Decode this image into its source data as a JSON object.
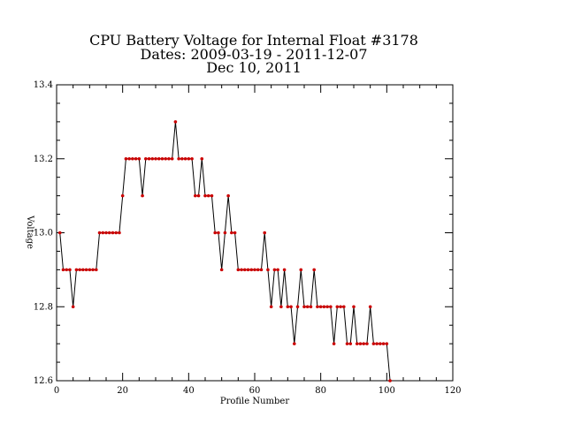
{
  "chart_data": {
    "type": "line",
    "title_lines": [
      "CPU Battery Voltage for Internal Float #3178",
      "Dates:  2009-03-19 -  2011-12-07",
      "Dec 10, 2011"
    ],
    "xlabel": "Profile Number",
    "ylabel": "Voltage",
    "xlim": [
      0,
      120
    ],
    "ylim": [
      12.6,
      13.4
    ],
    "xticks": [
      0,
      20,
      40,
      60,
      80,
      100,
      120
    ],
    "yticks": [
      12.6,
      12.8,
      13.0,
      13.2,
      13.4
    ],
    "ytick_labels": [
      "12.6",
      "12.8",
      "13.0",
      "13.2",
      "13.4"
    ],
    "series": [
      {
        "line_color": "#000000",
        "marker_color": "#cc0000",
        "x": [
          1,
          2,
          3,
          4,
          5,
          6,
          7,
          8,
          9,
          10,
          11,
          12,
          13,
          14,
          15,
          16,
          17,
          18,
          19,
          20,
          21,
          22,
          23,
          24,
          25,
          26,
          27,
          28,
          29,
          30,
          31,
          32,
          33,
          34,
          35,
          36,
          37,
          38,
          39,
          40,
          41,
          42,
          43,
          44,
          45,
          46,
          47,
          48,
          49,
          50,
          51,
          52,
          53,
          54,
          55,
          56,
          57,
          58,
          59,
          60,
          61,
          62,
          63,
          64,
          65,
          66,
          67,
          68,
          69,
          70,
          71,
          72,
          73,
          74,
          75,
          76,
          77,
          78,
          79,
          80,
          81,
          82,
          83,
          84,
          85,
          86,
          87,
          88,
          89,
          90,
          91,
          92,
          93,
          94,
          95,
          96,
          97,
          98,
          99,
          100,
          101
        ],
        "y": [
          13.0,
          12.9,
          12.9,
          12.9,
          12.8,
          12.9,
          12.9,
          12.9,
          12.9,
          12.9,
          12.9,
          12.9,
          13.0,
          13.0,
          13.0,
          13.0,
          13.0,
          13.0,
          13.0,
          13.1,
          13.2,
          13.2,
          13.2,
          13.2,
          13.2,
          13.1,
          13.2,
          13.2,
          13.2,
          13.2,
          13.2,
          13.2,
          13.2,
          13.2,
          13.2,
          13.3,
          13.2,
          13.2,
          13.2,
          13.2,
          13.2,
          13.1,
          13.1,
          13.2,
          13.1,
          13.1,
          13.1,
          13.0,
          13.0,
          12.9,
          13.0,
          13.1,
          13.0,
          13.0,
          12.9,
          12.9,
          12.9,
          12.9,
          12.9,
          12.9,
          12.9,
          12.9,
          13.0,
          12.9,
          12.8,
          12.9,
          12.9,
          12.8,
          12.9,
          12.8,
          12.8,
          12.7,
          12.8,
          12.9,
          12.8,
          12.8,
          12.8,
          12.9,
          12.8,
          12.8,
          12.8,
          12.8,
          12.8,
          12.7,
          12.8,
          12.8,
          12.8,
          12.7,
          12.7,
          12.8,
          12.7,
          12.7,
          12.7,
          12.7,
          12.8,
          12.7,
          12.7,
          12.7,
          12.7,
          12.7,
          12.6
        ]
      }
    ]
  }
}
